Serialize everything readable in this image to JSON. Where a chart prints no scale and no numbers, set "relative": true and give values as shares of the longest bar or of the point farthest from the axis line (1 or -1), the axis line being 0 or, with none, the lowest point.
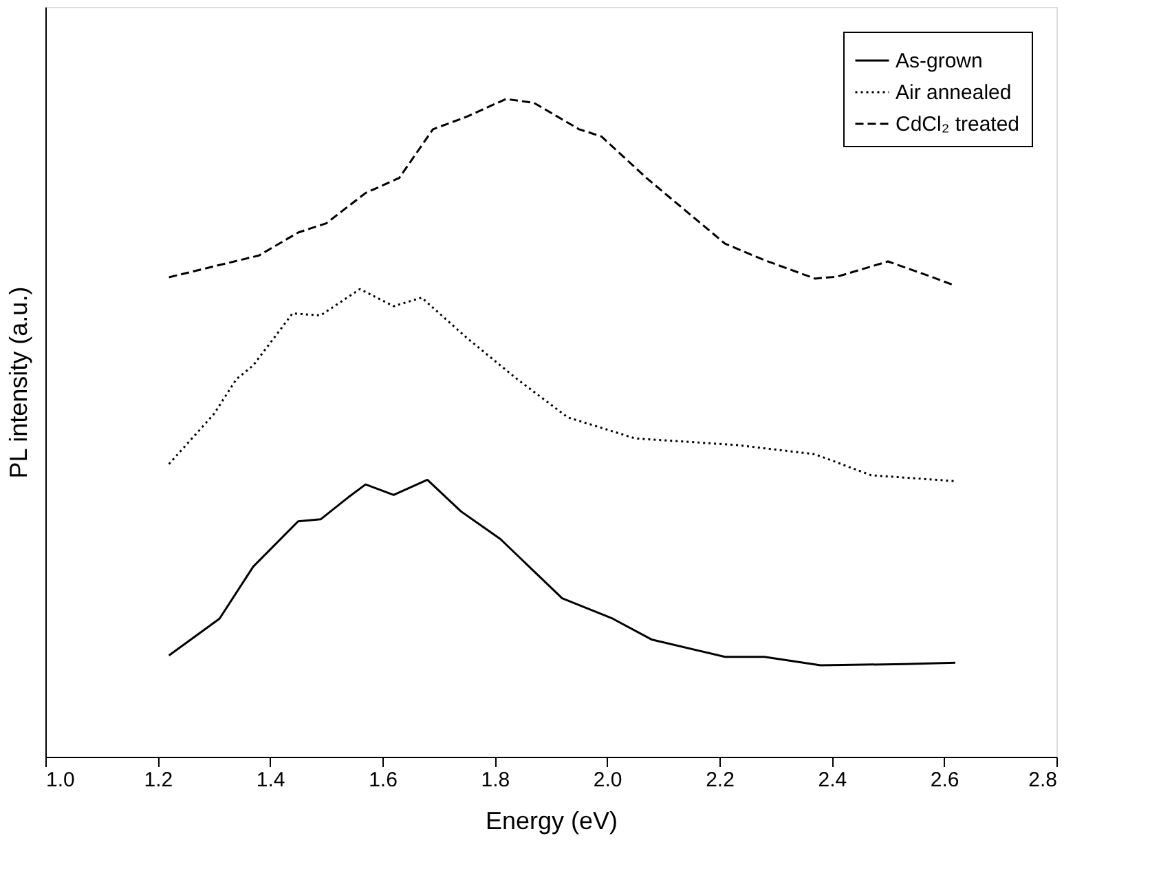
{
  "chart_data": {
    "type": "line",
    "xlabel": "Energy (eV)",
    "ylabel": "PL intensity (a.u.)",
    "relative": true,
    "xlim": [
      1.0,
      2.8
    ],
    "xticks": [
      {
        "value": 1.0,
        "label": "1.0"
      },
      {
        "value": 1.2,
        "label": "1.2"
      },
      {
        "value": 1.4,
        "label": "1.4"
      },
      {
        "value": 1.6,
        "label": "1.6"
      },
      {
        "value": 1.8,
        "label": "1.8"
      },
      {
        "value": 2.0,
        "label": "2.0"
      },
      {
        "value": 2.2,
        "label": "2.2"
      },
      {
        "value": 2.4,
        "label": "2.4"
      },
      {
        "value": 2.6,
        "label": "2.6"
      },
      {
        "value": 2.8,
        "label": "2.8"
      }
    ],
    "legend": "top right",
    "grid": false,
    "series": [
      {
        "name": "As-grown",
        "color": "#000000",
        "line_style": "solid",
        "x": [
          1.22,
          1.31,
          1.37,
          1.45,
          1.49,
          1.54,
          1.57,
          1.62,
          1.68,
          1.74,
          1.81,
          1.92,
          2.01,
          2.08,
          2.21,
          2.28,
          2.38,
          2.53,
          2.62
        ],
        "values": [
          0.154,
          0.21,
          0.289,
          0.358,
          0.361,
          0.395,
          0.414,
          0.398,
          0.421,
          0.373,
          0.331,
          0.241,
          0.21,
          0.178,
          0.152,
          0.152,
          0.139,
          0.141,
          0.143
        ]
      },
      {
        "name": "Air annealed",
        "color": "#000000",
        "line_style": "dotted",
        "x": [
          1.22,
          1.3,
          1.34,
          1.37,
          1.44,
          1.49,
          1.56,
          1.62,
          1.67,
          1.75,
          1.84,
          1.93,
          2.05,
          2.23,
          2.37,
          2.47,
          2.62
        ],
        "values": [
          0.445,
          0.521,
          0.574,
          0.595,
          0.674,
          0.671,
          0.711,
          0.685,
          0.698,
          0.637,
          0.574,
          0.516,
          0.484,
          0.474,
          0.46,
          0.428,
          0.419
        ]
      },
      {
        "name": "CdCl₂ treated",
        "color": "#000000",
        "line_style": "dashed",
        "x": [
          1.22,
          1.38,
          1.45,
          1.5,
          1.57,
          1.63,
          1.69,
          1.75,
          1.82,
          1.87,
          1.95,
          1.99,
          2.07,
          2.21,
          2.28,
          2.37,
          2.41,
          2.5,
          2.57,
          2.62
        ],
        "values": [
          0.729,
          0.762,
          0.797,
          0.811,
          0.857,
          0.88,
          0.954,
          0.973,
          1.0,
          0.994,
          0.954,
          0.943,
          0.88,
          0.78,
          0.755,
          0.727,
          0.73,
          0.753,
          0.732,
          0.716
        ]
      }
    ]
  }
}
